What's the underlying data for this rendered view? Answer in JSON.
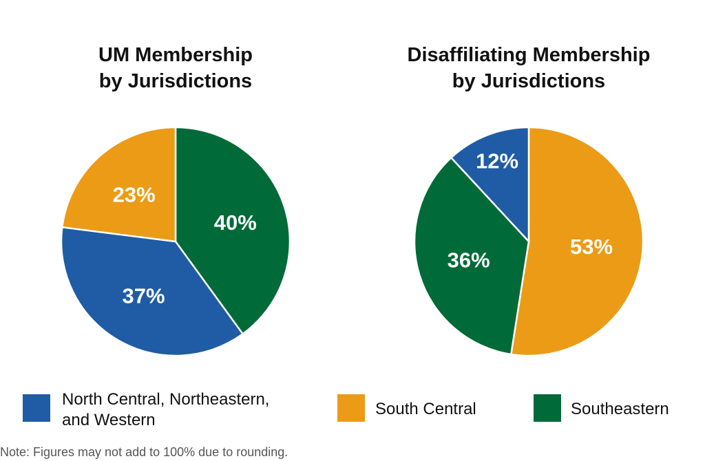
{
  "chart_data": [
    {
      "type": "pie",
      "title": "UM Membership by Jurisdictions",
      "title_lines": [
        "UM Membership",
        "by Jurisdictions"
      ],
      "slices": [
        {
          "label": "Southeastern",
          "value": 40,
          "data_label": "40%",
          "color": "#006a38"
        },
        {
          "label": "North Central, Northeastern, and Western",
          "value": 37,
          "data_label": "37%",
          "color": "#1f5ca5"
        },
        {
          "label": "South Central",
          "value": 23,
          "data_label": "23%",
          "color": "#eb9b16"
        }
      ]
    },
    {
      "type": "pie",
      "title": "Disaffiliating Membership by Jurisdictions",
      "title_lines": [
        "Disaffiliating Membership",
        "by Jurisdictions"
      ],
      "slices": [
        {
          "label": "South Central",
          "value": 53,
          "data_label": "53%",
          "color": "#eb9b16"
        },
        {
          "label": "Southeastern",
          "value": 36,
          "data_label": "36%",
          "color": "#006a38"
        },
        {
          "label": "North Central, Northeastern, and Western",
          "value": 12,
          "data_label": "12%",
          "color": "#1f5ca5"
        }
      ]
    }
  ],
  "legend": {
    "placement": "bottom",
    "items": [
      {
        "label_lines": [
          "North Central, Northeastern,",
          "and Western"
        ],
        "color": "#1f5ca5"
      },
      {
        "label_lines": [
          "South Central"
        ],
        "color": "#eb9b16"
      },
      {
        "label_lines": [
          "Southeastern"
        ],
        "color": "#006a38"
      }
    ]
  },
  "note": "Note: Figures may not add to 100% due to rounding."
}
